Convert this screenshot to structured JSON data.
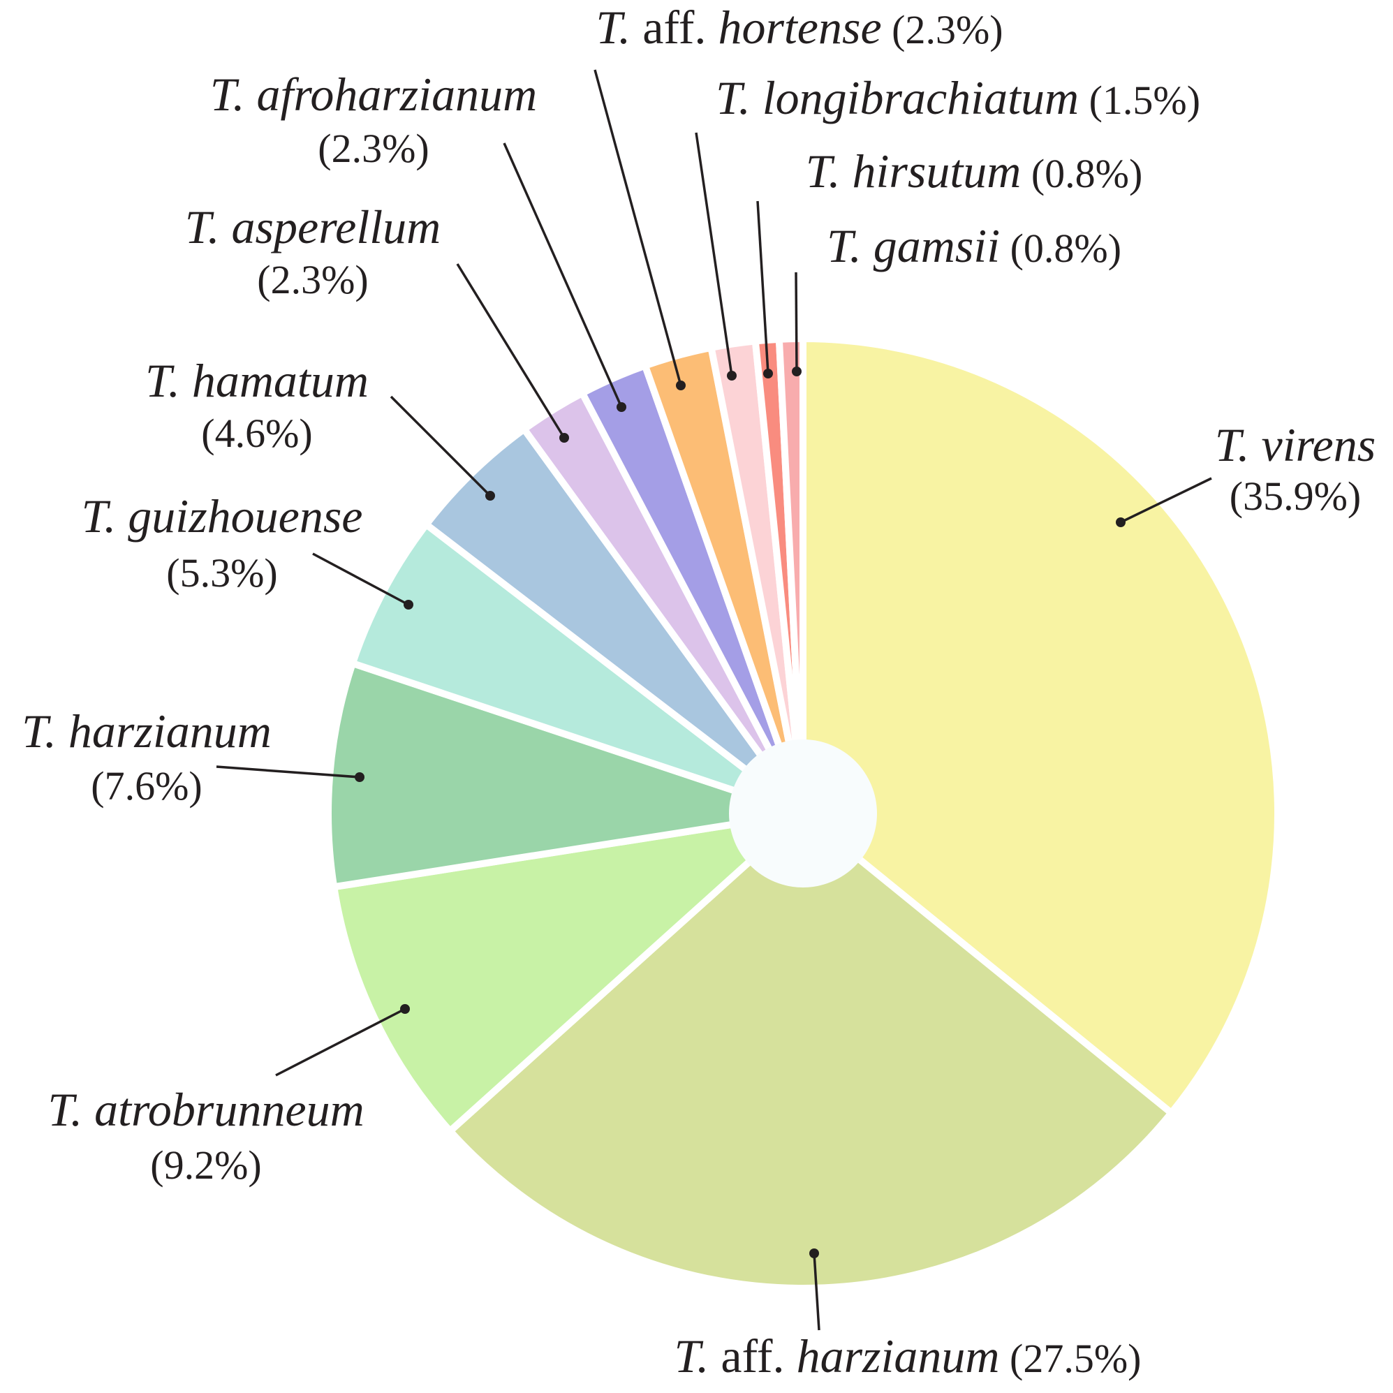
{
  "chart_data": {
    "type": "pie",
    "style": "donut",
    "slices": [
      {
        "genus": "T.",
        "qualifier": "",
        "epithet": "virens",
        "pct_label": "(35.9%)",
        "value": 35.9,
        "color": "#f8f3a3"
      },
      {
        "genus": "T.",
        "qualifier": "aff.",
        "epithet": "harzianum",
        "pct_label": "(27.5%)",
        "value": 27.5,
        "color": "#d6e19c"
      },
      {
        "genus": "T.",
        "qualifier": "",
        "epithet": "atrobrunneum",
        "pct_label": "(9.2%)",
        "value": 9.2,
        "color": "#c8f2a6"
      },
      {
        "genus": "T.",
        "qualifier": "",
        "epithet": "harzianum",
        "pct_label": "(7.6%)",
        "value": 7.6,
        "color": "#9ad5a9"
      },
      {
        "genus": "T.",
        "qualifier": "",
        "epithet": "guizhouense",
        "pct_label": "(5.3%)",
        "value": 5.3,
        "color": "#b5eadc"
      },
      {
        "genus": "T.",
        "qualifier": "",
        "epithet": "hamatum",
        "pct_label": "(4.6%)",
        "value": 4.6,
        "color": "#a9c6df"
      },
      {
        "genus": "T.",
        "qualifier": "",
        "epithet": "asperellum",
        "pct_label": "(2.3%)",
        "value": 2.3,
        "color": "#dcc3ea"
      },
      {
        "genus": "T.",
        "qualifier": "",
        "epithet": "afroharzianum",
        "pct_label": "(2.3%)",
        "value": 2.3,
        "color": "#a49ee6"
      },
      {
        "genus": "T.",
        "qualifier": "aff.",
        "epithet": "hortense",
        "pct_label": "(2.3%)",
        "value": 2.3,
        "color": "#fcbd75"
      },
      {
        "genus": "T.",
        "qualifier": "",
        "epithet": "longibrachiatum",
        "pct_label": "(1.5%)",
        "value": 1.5,
        "color": "#fcd3d6"
      },
      {
        "genus": "T.",
        "qualifier": "",
        "epithet": "hirsutum",
        "pct_label": "(0.8%)",
        "value": 0.8,
        "color": "#f98c7f"
      },
      {
        "genus": "T.",
        "qualifier": "",
        "epithet": "gamsii",
        "pct_label": "(0.8%)",
        "value": 0.8,
        "color": "#f8acad"
      }
    ],
    "start_angle_deg": 0,
    "direction": "clockwise",
    "center_color": "#f8fcfd"
  }
}
